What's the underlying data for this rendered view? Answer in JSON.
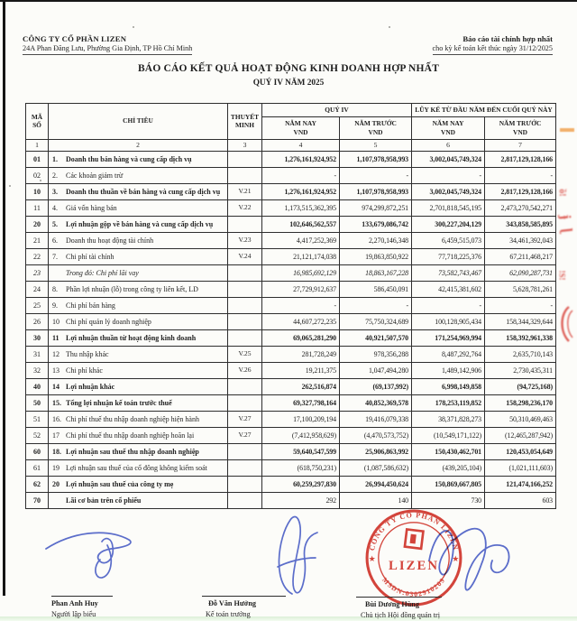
{
  "page": {
    "company_name": "CÔNG TY CỔ PHẦN LIZEN",
    "company_address": "24A Phan Đăng Lưu, Phường Gia Định, TP Hồ Chí Minh",
    "report_label": "Báo cáo tài chính hợp nhất",
    "report_period_note": "cho kỳ kế toán kết thúc ngày 31/12/2025",
    "title": "BÁO CÁO KẾT QUẢ HOẠT ĐỘNG KINH DOANH HỢP NHẤT",
    "subtitle": "QUÝ IV NĂM 2025"
  },
  "table": {
    "headers": {
      "code": "MÃ SỐ",
      "item": "CHỈ TIÊU",
      "note": "THUYẾT MINH",
      "q4_group": "QUÝ IV",
      "ytd_group": "LŨY KẾ TỪ ĐẦU NĂM ĐẾN CUỐI QUÝ NÀY",
      "col_now": "NĂM NAY",
      "col_prev": "NĂM TRƯỚC",
      "currency": "VND",
      "col_numbers": [
        "1",
        "2",
        "3",
        "4",
        "5",
        "6",
        "7"
      ]
    },
    "rows": [
      {
        "code": "01",
        "no": "1.",
        "label": "Doanh thu bán hàng và cung cấp dịch vụ",
        "note": "",
        "v": [
          "1,276,161,924,952",
          "1,107,978,958,993",
          "3,002,045,749,324",
          "2,817,129,128,166"
        ],
        "b": true,
        "vb": true,
        "i": false
      },
      {
        "code": "02",
        "no": "2.",
        "label": "Các khoản giảm trừ",
        "note": "",
        "v": [
          "-",
          "-",
          "-",
          "-"
        ],
        "b": false,
        "vb": false,
        "i": false
      },
      {
        "code": "10",
        "no": "3.",
        "label": "Doanh thu thuần về bán hàng và cung cấp dịch vụ",
        "note": "V.21",
        "v": [
          "1,276,161,924,952",
          "1,107,978,958,993",
          "3,002,045,749,324",
          "2,817,129,128,166"
        ],
        "b": true,
        "vb": true,
        "i": false
      },
      {
        "code": "11",
        "no": "4.",
        "label": "Giá vốn hàng bán",
        "note": "V.22",
        "v": [
          "1,173,515,362,395",
          "974,299,872,251",
          "2,701,818,545,195",
          "2,473,270,542,271"
        ],
        "b": false,
        "vb": false,
        "i": false
      },
      {
        "code": "20",
        "no": "5.",
        "label": "Lợi nhuận gộp về bán hàng và cung cấp dịch vụ",
        "note": "",
        "v": [
          "102,646,562,557",
          "133,679,086,742",
          "300,227,204,129",
          "343,858,585,895"
        ],
        "b": true,
        "vb": true,
        "i": false
      },
      {
        "code": "21",
        "no": "6.",
        "label": "Doanh thu hoạt động tài chính",
        "note": "V.23",
        "v": [
          "4,417,252,369",
          "2,270,146,348",
          "6,459,515,073",
          "34,461,392,043"
        ],
        "b": false,
        "vb": false,
        "i": false
      },
      {
        "code": "22",
        "no": "7.",
        "label": "Chi phí tài chính",
        "note": "V.24",
        "v": [
          "21,121,174,038",
          "19,863,850,922",
          "77,718,225,376",
          "67,211,468,217"
        ],
        "b": false,
        "vb": false,
        "i": false
      },
      {
        "code": "23",
        "no": "",
        "label": "Trong đó: Chi phí lãi vay",
        "note": "",
        "v": [
          "16,985,692,129",
          "18,863,167,228",
          "73,582,743,467",
          "62,090,287,731"
        ],
        "b": false,
        "vb": false,
        "i": true
      },
      {
        "code": "24",
        "no": "8.",
        "label": "Phần lợi nhuận (lỗ) trong công ty liên kết, LD",
        "note": "",
        "v": [
          "27,729,912,637",
          "586,450,091",
          "42,415,381,602",
          "5,628,781,261"
        ],
        "b": false,
        "vb": false,
        "i": false
      },
      {
        "code": "25",
        "no": "9.",
        "label": "Chi phí bán hàng",
        "note": "",
        "v": [
          "-",
          "-",
          "-",
          "-"
        ],
        "b": false,
        "vb": false,
        "i": false
      },
      {
        "code": "26",
        "no": "10",
        "label": "Chi phí quản lý doanh nghiệp",
        "note": "",
        "v": [
          "44,607,272,235",
          "75,750,324,689",
          "100,128,905,434",
          "158,344,329,644"
        ],
        "b": false,
        "vb": false,
        "i": false
      },
      {
        "code": "30",
        "no": "11",
        "label": "Lợi nhuận thuần từ hoạt động kinh doanh",
        "note": "",
        "v": [
          "69,065,281,290",
          "40,921,507,570",
          "171,254,969,994",
          "158,392,961,338"
        ],
        "b": true,
        "vb": true,
        "i": false
      },
      {
        "code": "31",
        "no": "12",
        "label": "Thu nhập khác",
        "note": "V.25",
        "v": [
          "281,728,249",
          "978,356,288",
          "8,487,292,764",
          "2,635,710,143"
        ],
        "b": false,
        "vb": false,
        "i": false
      },
      {
        "code": "32",
        "no": "13",
        "label": "Chi phí khác",
        "note": "V.26",
        "v": [
          "19,211,375",
          "1,047,494,280",
          "1,489,142,906",
          "2,730,435,311"
        ],
        "b": false,
        "vb": false,
        "i": false
      },
      {
        "code": "40",
        "no": "14",
        "label": "Lợi nhuận khác",
        "note": "",
        "v": [
          "262,516,874",
          "(69,137,992)",
          "6,998,149,858",
          "(94,725,168)"
        ],
        "b": true,
        "vb": true,
        "i": false
      },
      {
        "code": "50",
        "no": "15.",
        "label": "Tổng lợi nhuận kế toán trước thuế",
        "note": "",
        "v": [
          "69,327,798,164",
          "40,852,369,578",
          "178,253,119,852",
          "158,298,236,170"
        ],
        "b": true,
        "vb": true,
        "i": false
      },
      {
        "code": "51",
        "no": "16.",
        "label": "Chi phí thuế thu nhập doanh nghiệp hiện hành",
        "note": "V.27",
        "v": [
          "17,100,209,194",
          "19,416,079,338",
          "38,371,828,273",
          "50,310,469,463"
        ],
        "b": false,
        "vb": false,
        "i": false
      },
      {
        "code": "52",
        "no": "17",
        "label": "Chi phí thuế thu nhập doanh nghiệp hoãn lại",
        "note": "V.27",
        "v": [
          "(7,412,958,629)",
          "(4,470,573,752)",
          "(10,549,171,122)",
          "(12,465,287,942)"
        ],
        "b": false,
        "vb": false,
        "i": false
      },
      {
        "code": "60",
        "no": "18.",
        "label": "Lợi nhuận sau thuế thu nhập doanh nghiệp",
        "note": "",
        "v": [
          "59,640,547,599",
          "25,906,863,992",
          "150,430,462,701",
          "120,453,054,649"
        ],
        "b": true,
        "vb": true,
        "i": false
      },
      {
        "code": "61",
        "no": "19",
        "label": "Lợi nhuận sau thuế của cổ đông không kiểm soát",
        "note": "",
        "v": [
          "(618,750,231)",
          "(1,087,586,632)",
          "(439,205,104)",
          "(1,021,111,603)"
        ],
        "b": false,
        "vb": false,
        "i": false
      },
      {
        "code": "62",
        "no": "20",
        "label": "Lợi nhuận sau thuế của công ty mẹ",
        "note": "",
        "v": [
          "60,259,297,830",
          "26,994,450,624",
          "150,869,667,805",
          "121,474,166,252"
        ],
        "b": true,
        "vb": true,
        "i": false
      },
      {
        "code": "70",
        "no": "",
        "label": "Lãi cơ bản trên cổ phiếu",
        "note": "",
        "v": [
          "292",
          "140",
          "730",
          "603"
        ],
        "b": true,
        "vb": false,
        "i": false
      }
    ]
  },
  "footer": {
    "signers": [
      {
        "name": "Phan Anh Huy",
        "role": "Người lập biểu"
      },
      {
        "name": "Đỗ Văn Hưởng",
        "role": "Kế toán trưởng"
      },
      {
        "name": "Bùi Dương Hùng",
        "role": "Chủ tịch Hội đồng quản trị"
      }
    ],
    "stamp": {
      "ring_text_top": "CÔNG TY CỔ PHẦN LIZEN",
      "ring_text_bottom": "MSDN:0302910209",
      "center_text": "LIZEN",
      "star": "★"
    }
  },
  "colors": {
    "stamp_red": "#d6453c",
    "signature_blue": "#3f55c7",
    "ink": "#1f1f1f"
  }
}
